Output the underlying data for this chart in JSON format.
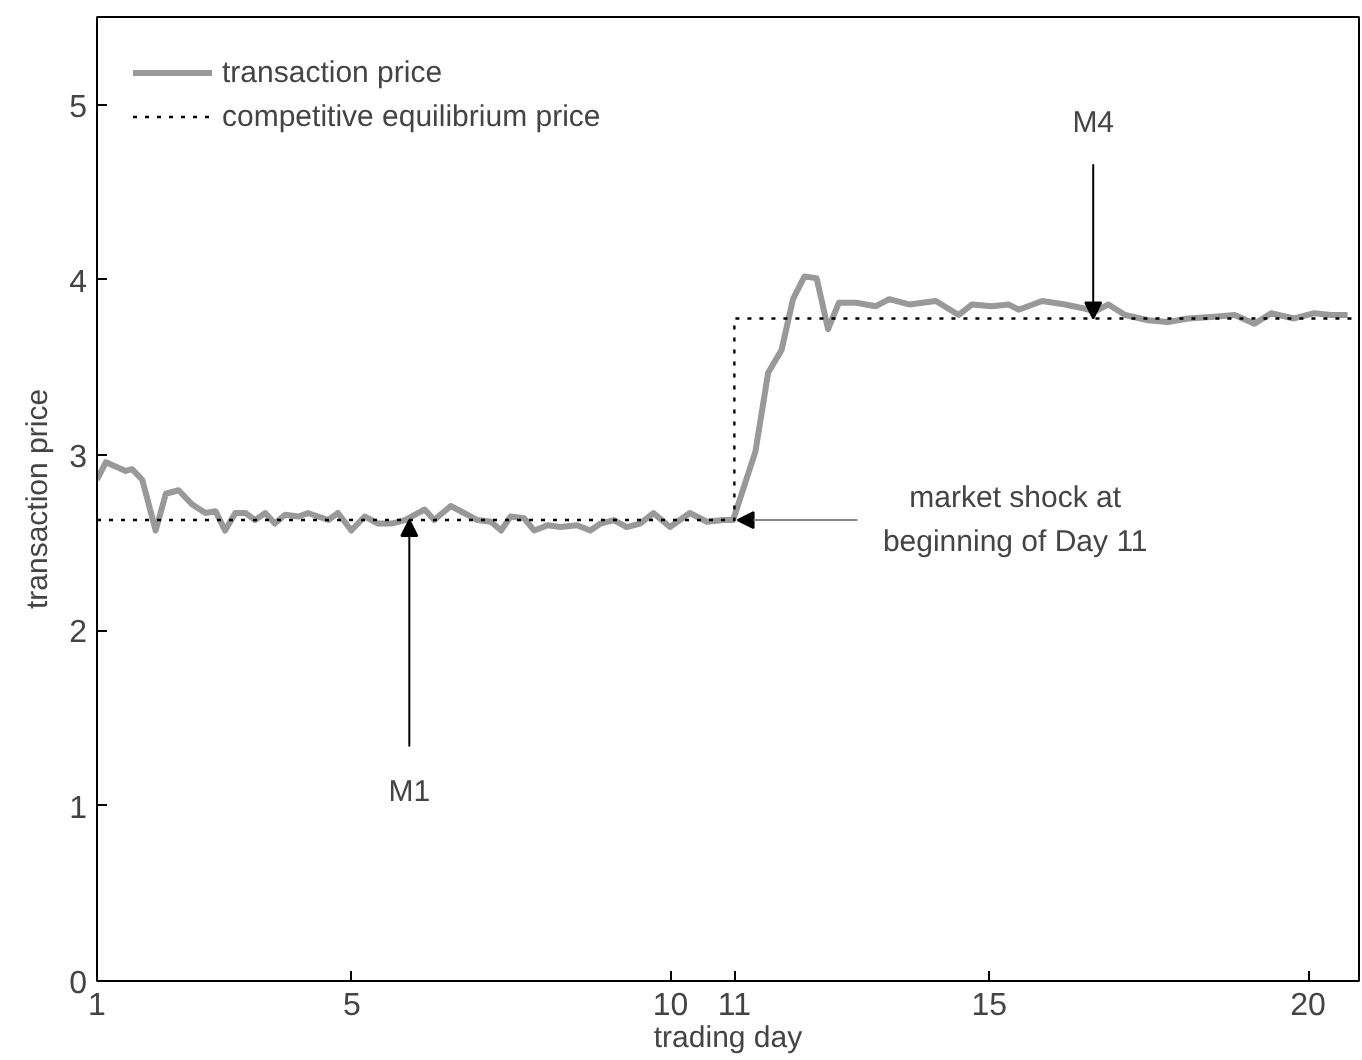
{
  "chart_data": {
    "type": "line",
    "xlabel": "trading day",
    "ylabel": "transaction price",
    "xlim": [
      1,
      20.8
    ],
    "ylim": [
      0,
      5.5
    ],
    "xticks": [
      1,
      5,
      10,
      11,
      15,
      20
    ],
    "yticks": [
      0,
      1,
      2,
      3,
      4,
      5
    ],
    "grid": false,
    "legend": "top left",
    "marker": "none",
    "series": [
      {
        "name": "transaction price",
        "color": "#999999",
        "line_style": "solid",
        "x": [
          1.0,
          1.14,
          1.45,
          1.55,
          1.71,
          1.92,
          2.08,
          2.28,
          2.49,
          2.7,
          2.86,
          3.01,
          3.17,
          3.33,
          3.48,
          3.64,
          3.79,
          3.95,
          4.16,
          4.31,
          4.47,
          4.63,
          4.78,
          4.99,
          5.2,
          5.41,
          5.62,
          5.83,
          6.14,
          6.29,
          6.55,
          6.76,
          6.97,
          7.18,
          7.34,
          7.49,
          7.7,
          7.86,
          8.07,
          8.27,
          8.53,
          8.74,
          8.9,
          9.11,
          9.31,
          9.52,
          9.73,
          9.99,
          10.3,
          10.57,
          10.83,
          10.98,
          11.33,
          11.53,
          11.74,
          11.92,
          12.1,
          12.29,
          12.47,
          12.64,
          12.91,
          13.22,
          13.43,
          13.74,
          14.16,
          14.52,
          14.73,
          15.04,
          15.3,
          15.46,
          15.83,
          16.19,
          16.45,
          16.66,
          16.87,
          17.13,
          17.49,
          17.8,
          18.12,
          18.53,
          18.85,
          19.16,
          19.42,
          19.78,
          20.1,
          20.36,
          20.62
        ],
        "values": [
          2.86,
          2.96,
          2.91,
          2.92,
          2.86,
          2.57,
          2.78,
          2.8,
          2.72,
          2.67,
          2.68,
          2.57,
          2.67,
          2.67,
          2.63,
          2.67,
          2.61,
          2.66,
          2.65,
          2.67,
          2.65,
          2.63,
          2.67,
          2.57,
          2.65,
          2.61,
          2.61,
          2.63,
          2.69,
          2.63,
          2.71,
          2.67,
          2.63,
          2.62,
          2.57,
          2.65,
          2.64,
          2.57,
          2.6,
          2.59,
          2.6,
          2.57,
          2.61,
          2.63,
          2.59,
          2.61,
          2.67,
          2.59,
          2.67,
          2.62,
          2.63,
          2.63,
          3.02,
          3.47,
          3.6,
          3.89,
          4.02,
          4.01,
          3.72,
          3.87,
          3.87,
          3.85,
          3.89,
          3.86,
          3.88,
          3.8,
          3.86,
          3.85,
          3.86,
          3.83,
          3.88,
          3.86,
          3.84,
          3.82,
          3.86,
          3.8,
          3.77,
          3.76,
          3.78,
          3.79,
          3.8,
          3.75,
          3.81,
          3.78,
          3.81,
          3.8,
          3.8
        ]
      },
      {
        "name": "competitive equilibrium price",
        "color": "#000000",
        "line_style": "dotted",
        "x": [
          1,
          11,
          11,
          20.8
        ],
        "values": [
          2.63,
          2.63,
          3.78,
          3.78
        ]
      }
    ],
    "annotations": [
      {
        "text": "M1",
        "x": 5.9,
        "y": 2.63
      },
      {
        "text": "M4",
        "x": 16.63,
        "y": 3.78
      },
      {
        "text": "market shock at\nbeginning of Day 11",
        "x": 11.05,
        "y": 2.63
      }
    ]
  }
}
